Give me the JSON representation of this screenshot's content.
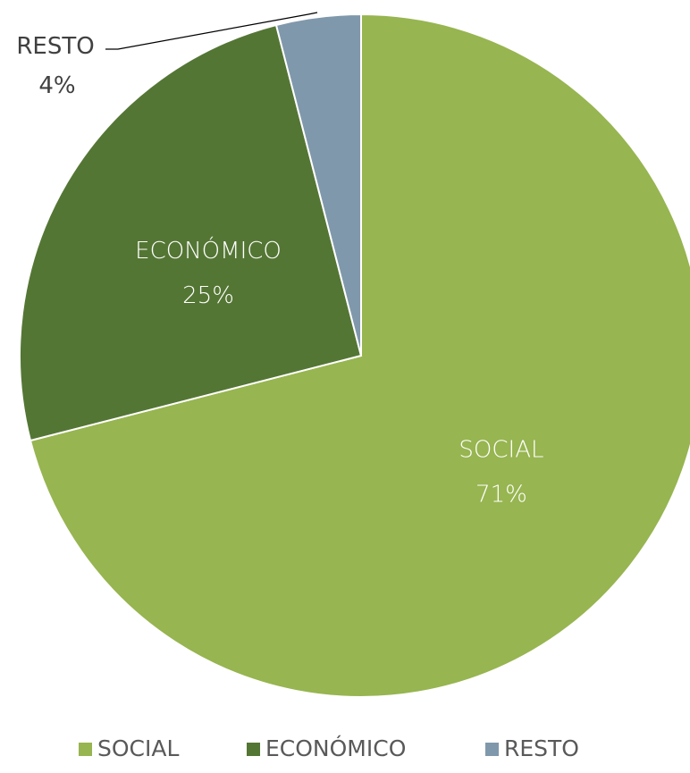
{
  "chart_data": {
    "type": "pie",
    "slices": [
      {
        "label": "SOCIAL",
        "value": 71,
        "value_label": "71%",
        "color": "#97b550"
      },
      {
        "label": "ECONÓMICO",
        "value": 25,
        "value_label": "25%",
        "color": "#547634"
      },
      {
        "label": "RESTO",
        "value": 4,
        "value_label": "4%",
        "color": "#8098ab"
      }
    ],
    "start_angle_deg": 0,
    "direction": "clockwise",
    "legend_position": "bottom",
    "label_color_inside": "#ffffff",
    "label_color_outside": "#404040"
  }
}
